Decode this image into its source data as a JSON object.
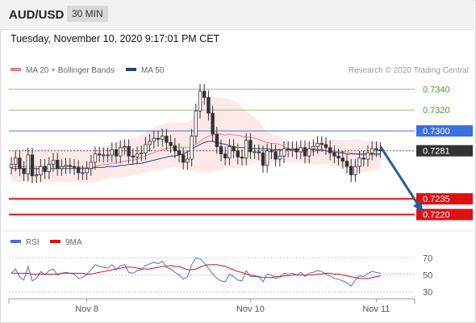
{
  "header": {
    "symbol": "AUD/USD",
    "timeframe": "30 MIN",
    "datetime": "Tuesday, November 10, 2020 9:17:01 PM CET"
  },
  "colors": {
    "ma20": "#f08080",
    "ma50": "#1f3f8f",
    "band_fill": "#fde0e0",
    "resistance_line": "#3a6fe0",
    "support_line": "#e01010",
    "target_line": "#8ec86a",
    "current_price": "#333333",
    "candle_up": "#ffffff",
    "candle_down": "#333333",
    "rsi": "#4a6fd8",
    "rsi_ma": "#e01010",
    "arrow": "#2a5a96"
  },
  "chart_data": [
    {
      "type": "candlestick",
      "legend": [
        {
          "name": "MA 20 + Bollinger Bands",
          "color": "#f08080"
        },
        {
          "name": "MA 50",
          "color": "#1f3f8f"
        }
      ],
      "legend_position": "top-left",
      "credit": "Research © 2020 Trading Central",
      "x_ticks": [
        {
          "label": "Nov 8",
          "index": 18
        },
        {
          "label": "Nov 10",
          "index": 57
        },
        {
          "label": "Nov 11",
          "index": 87
        }
      ],
      "ylim": [
        0.7212,
        0.7348
      ],
      "levels": [
        {
          "value": 0.734,
          "label": "0.7340",
          "kind": "target"
        },
        {
          "value": 0.732,
          "label": "0.7320",
          "kind": "target"
        },
        {
          "value": 0.73,
          "label": "0.7300",
          "kind": "resistance"
        },
        {
          "value": 0.7281,
          "label": "0.7281",
          "kind": "current"
        },
        {
          "value": 0.7235,
          "label": "0.7235",
          "kind": "support"
        },
        {
          "value": 0.722,
          "label": "0.7220",
          "kind": "support"
        }
      ],
      "forecast_arrow": {
        "from_index": 88,
        "from_value": 0.7285,
        "to_index": 98,
        "to_value": 0.7223
      },
      "closes": [
        0.7268,
        0.7274,
        0.7264,
        0.7259,
        0.7277,
        0.7257,
        0.7258,
        0.7266,
        0.7261,
        0.7268,
        0.7272,
        0.7264,
        0.7266,
        0.7267,
        0.7266,
        0.7265,
        0.726,
        0.726,
        0.7264,
        0.727,
        0.7278,
        0.7277,
        0.7277,
        0.7277,
        0.7282,
        0.7276,
        0.7284,
        0.7285,
        0.7276,
        0.7275,
        0.7278,
        0.7279,
        0.7287,
        0.729,
        0.7293,
        0.7292,
        0.7295,
        0.7289,
        0.7286,
        0.7281,
        0.7277,
        0.727,
        0.7273,
        0.7295,
        0.7319,
        0.7338,
        0.7332,
        0.7317,
        0.7297,
        0.7285,
        0.7278,
        0.7274,
        0.7285,
        0.7281,
        0.7275,
        0.7274,
        0.7291,
        0.728,
        0.728,
        0.7279,
        0.7267,
        0.7281,
        0.728,
        0.7273,
        0.7276,
        0.7283,
        0.7282,
        0.7283,
        0.728,
        0.7284,
        0.7276,
        0.7283,
        0.7285,
        0.7288,
        0.7287,
        0.7284,
        0.7279,
        0.7276,
        0.7274,
        0.7271,
        0.7266,
        0.7258,
        0.7266,
        0.7274,
        0.7273,
        0.7279,
        0.7283,
        0.7282,
        0.7281
      ],
      "ma20": [
        0.7266,
        0.7266,
        0.7266,
        0.7266,
        0.7266,
        0.7266,
        0.7266,
        0.7266,
        0.7266,
        0.7266,
        0.7266,
        0.7266,
        0.7266,
        0.7266,
        0.7266,
        0.7266,
        0.7266,
        0.7265,
        0.7265,
        0.7265,
        0.7266,
        0.7267,
        0.7268,
        0.7268,
        0.7269,
        0.7269,
        0.727,
        0.7271,
        0.7272,
        0.7272,
        0.7273,
        0.7275,
        0.7276,
        0.7278,
        0.7279,
        0.7281,
        0.7282,
        0.7283,
        0.7284,
        0.7284,
        0.7284,
        0.7284,
        0.7284,
        0.7285,
        0.7287,
        0.729,
        0.7293,
        0.7295,
        0.7296,
        0.7297,
        0.7297,
        0.7296,
        0.7297,
        0.7296,
        0.7296,
        0.7295,
        0.7294,
        0.7294,
        0.7293,
        0.7292,
        0.729,
        0.7289,
        0.7288,
        0.7288,
        0.7287,
        0.7285,
        0.7283,
        0.7281,
        0.728,
        0.728,
        0.728,
        0.728,
        0.728,
        0.7281,
        0.7282,
        0.7281,
        0.7281,
        0.7281,
        0.728,
        0.728,
        0.728,
        0.7279,
        0.7278,
        0.7277,
        0.7277,
        0.7277,
        0.7277,
        0.7277,
        0.7277
      ],
      "ma50": [
        0.7264,
        0.7264,
        0.7264,
        0.7264,
        0.7264,
        0.7264,
        0.7264,
        0.7264,
        0.7264,
        0.7264,
        0.7264,
        0.7264,
        0.7264,
        0.7264,
        0.7264,
        0.7264,
        0.7264,
        0.7264,
        0.7264,
        0.7264,
        0.7265,
        0.7265,
        0.7265,
        0.7266,
        0.7266,
        0.7266,
        0.7267,
        0.7267,
        0.7268,
        0.7268,
        0.7269,
        0.7269,
        0.727,
        0.7271,
        0.7272,
        0.7273,
        0.7274,
        0.7275,
        0.7276,
        0.7276,
        0.7277,
        0.7278,
        0.728,
        0.7282,
        0.7285,
        0.7287,
        0.7289,
        0.729,
        0.729,
        0.7289,
        0.7288,
        0.7287,
        0.7286,
        0.7285,
        0.7284,
        0.7284,
        0.7284,
        0.7283,
        0.7283,
        0.7283,
        0.7283,
        0.7283,
        0.7282,
        0.7282,
        0.7282,
        0.7282,
        0.7282,
        0.7282,
        0.7282,
        0.7282,
        0.7282,
        0.7282,
        0.7282,
        0.7282,
        0.7282,
        0.7281,
        0.728,
        0.728,
        0.7279,
        0.7279,
        0.7278,
        0.7278,
        0.7278,
        0.7278,
        0.7278,
        0.7278,
        0.7278,
        0.7278,
        0.7278
      ],
      "band_upper": [
        0.7283,
        0.7283,
        0.7283,
        0.7283,
        0.7283,
        0.7283,
        0.7283,
        0.7283,
        0.7283,
        0.7283,
        0.7283,
        0.7283,
        0.7283,
        0.7283,
        0.7283,
        0.7283,
        0.7283,
        0.7282,
        0.7282,
        0.7282,
        0.7283,
        0.7284,
        0.7285,
        0.7286,
        0.7287,
        0.7288,
        0.729,
        0.7291,
        0.7292,
        0.7293,
        0.7294,
        0.7296,
        0.7299,
        0.7301,
        0.7303,
        0.7305,
        0.7306,
        0.7307,
        0.7308,
        0.7308,
        0.7308,
        0.7308,
        0.7308,
        0.7312,
        0.7318,
        0.7326,
        0.7331,
        0.7333,
        0.7333,
        0.7332,
        0.7332,
        0.7331,
        0.7331,
        0.7329,
        0.7327,
        0.7322,
        0.7318,
        0.7316,
        0.7313,
        0.7309,
        0.7303,
        0.7299,
        0.7297,
        0.7296,
        0.7295,
        0.7293,
        0.7291,
        0.7289,
        0.7288,
        0.7288,
        0.7289,
        0.7289,
        0.729,
        0.7291,
        0.7292,
        0.7292,
        0.7292,
        0.7292,
        0.7291,
        0.7291,
        0.7291,
        0.7292,
        0.7292,
        0.7291,
        0.7291,
        0.729,
        0.729,
        0.729,
        0.729
      ],
      "band_lower": [
        0.7251,
        0.7251,
        0.7251,
        0.7251,
        0.7251,
        0.7251,
        0.7251,
        0.7251,
        0.7251,
        0.7251,
        0.7251,
        0.7251,
        0.7251,
        0.7251,
        0.7251,
        0.7251,
        0.7251,
        0.725,
        0.725,
        0.725,
        0.7251,
        0.7252,
        0.7253,
        0.7254,
        0.7255,
        0.7255,
        0.7256,
        0.7256,
        0.7257,
        0.7257,
        0.7258,
        0.7259,
        0.726,
        0.7261,
        0.7262,
        0.7262,
        0.7263,
        0.7264,
        0.7265,
        0.7265,
        0.7265,
        0.7264,
        0.7263,
        0.7262,
        0.7261,
        0.726,
        0.726,
        0.726,
        0.7261,
        0.7262,
        0.7263,
        0.7264,
        0.7265,
        0.7264,
        0.7264,
        0.7266,
        0.7267,
        0.7268,
        0.7269,
        0.727,
        0.727,
        0.727,
        0.727,
        0.727,
        0.727,
        0.727,
        0.727,
        0.727,
        0.727,
        0.727,
        0.7269,
        0.7269,
        0.7268,
        0.7268,
        0.7268,
        0.7268,
        0.7267,
        0.7266,
        0.7265,
        0.7264,
        0.7263,
        0.7261,
        0.726,
        0.726,
        0.726,
        0.7261,
        0.7262,
        0.7263,
        0.7264
      ]
    },
    {
      "type": "line",
      "legend": [
        {
          "name": "RSI",
          "color": "#4a6fd8"
        },
        {
          "name": "9MA",
          "color": "#e01010"
        }
      ],
      "legend_position": "top-left",
      "ylim": [
        25,
        75
      ],
      "y_ticks": [
        70,
        50,
        30
      ],
      "rsi": [
        52,
        57,
        48,
        44,
        60,
        43,
        46,
        54,
        50,
        55,
        57,
        50,
        52,
        53,
        52,
        51,
        46,
        47,
        51,
        56,
        62,
        60,
        59,
        58,
        62,
        56,
        61,
        62,
        53,
        52,
        55,
        56,
        61,
        63,
        65,
        63,
        66,
        59,
        57,
        53,
        50,
        45,
        48,
        62,
        70,
        69,
        64,
        58,
        51,
        46,
        43,
        42,
        51,
        48,
        44,
        43,
        55,
        48,
        48,
        48,
        42,
        51,
        50,
        46,
        48,
        52,
        51,
        52,
        50,
        53,
        48,
        52,
        53,
        55,
        54,
        51,
        49,
        46,
        45,
        43,
        41,
        37,
        44,
        49,
        48,
        52,
        54,
        53,
        52
      ],
      "rsi_ma": [
        52,
        52,
        52,
        52,
        52,
        51,
        51,
        51,
        51,
        51,
        51,
        51,
        52,
        52,
        52,
        52,
        52,
        52,
        51,
        51,
        52,
        53,
        54,
        55,
        56,
        57,
        58,
        59,
        59,
        59,
        58,
        57,
        57,
        57,
        58,
        59,
        60,
        60,
        61,
        60,
        60,
        58,
        56,
        56,
        57,
        59,
        61,
        62,
        62,
        62,
        61,
        60,
        58,
        56,
        54,
        53,
        51,
        50,
        49,
        48,
        47,
        47,
        47,
        48,
        48,
        49,
        49,
        50,
        50,
        50,
        50,
        50,
        50,
        51,
        51,
        52,
        52,
        51,
        51,
        50,
        49,
        48,
        47,
        46,
        46,
        46,
        47,
        48,
        49
      ]
    }
  ]
}
